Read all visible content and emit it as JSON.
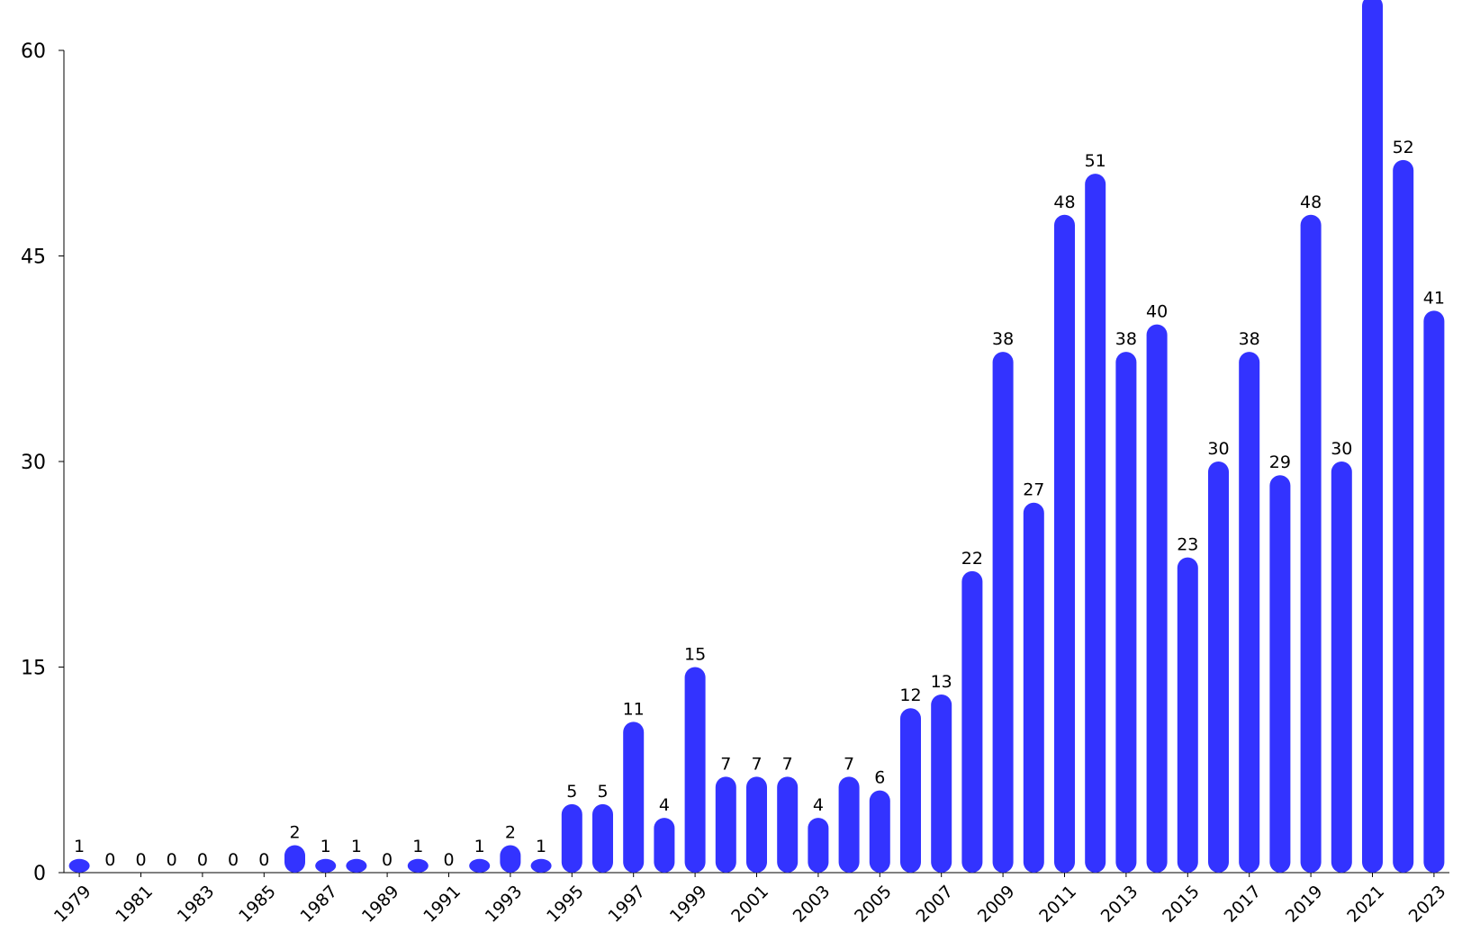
{
  "chart_data": {
    "type": "bar",
    "title": "",
    "xlabel": "",
    "ylabel": "",
    "ylim": [
      0,
      60
    ],
    "yticks": [
      0,
      15,
      30,
      45,
      60
    ],
    "grid": false,
    "bar_color": "#3333FF",
    "categories": [
      "1979",
      "1980",
      "1981",
      "1982",
      "1983",
      "1984",
      "1985",
      "1986",
      "1987",
      "1988",
      "1989",
      "1990",
      "1991",
      "1992",
      "1993",
      "1994",
      "1995",
      "1996",
      "1997",
      "1998",
      "1999",
      "2000",
      "2001",
      "2002",
      "2003",
      "2004",
      "2005",
      "2006",
      "2007",
      "2008",
      "2009",
      "2010",
      "2011",
      "2012",
      "2013",
      "2014",
      "2015",
      "2016",
      "2017",
      "2018",
      "2019",
      "2020",
      "2021",
      "2022",
      "2023"
    ],
    "values": [
      1,
      0,
      0,
      0,
      0,
      0,
      0,
      2,
      1,
      1,
      0,
      1,
      0,
      1,
      2,
      1,
      5,
      5,
      11,
      4,
      15,
      7,
      7,
      7,
      4,
      7,
      6,
      12,
      13,
      22,
      38,
      27,
      48,
      51,
      38,
      40,
      23,
      30,
      38,
      29,
      48,
      30,
      64,
      52,
      41
    ],
    "xtick_labels": [
      "1979",
      "1981",
      "1983",
      "1985",
      "1987",
      "1989",
      "1991",
      "1993",
      "1995",
      "1997",
      "1999",
      "2001",
      "2003",
      "2005",
      "2007",
      "2009",
      "2011",
      "2013",
      "2015",
      "2017",
      "2019",
      "2021",
      "2023"
    ]
  }
}
